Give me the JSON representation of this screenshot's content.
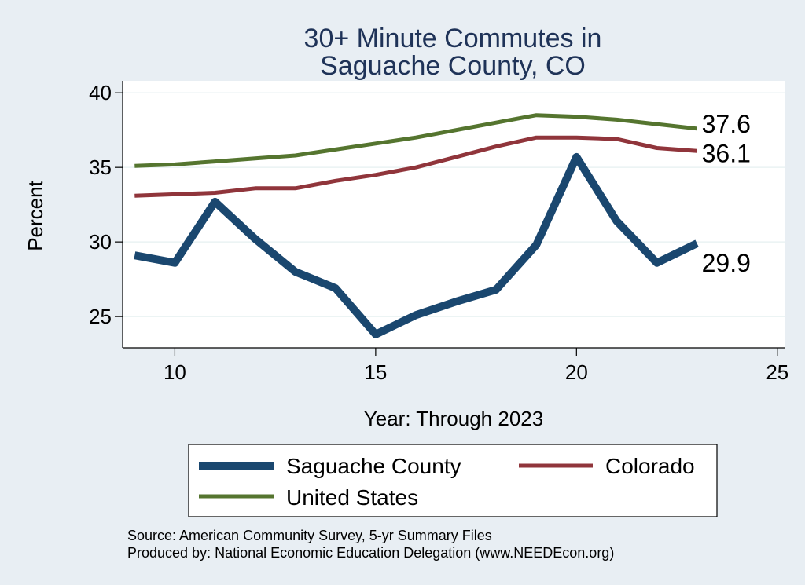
{
  "chart_data": {
    "type": "line",
    "title_lines": [
      "30+ Minute Commutes in",
      "Saguache County, CO"
    ],
    "xlabel": "Year: Through 2023",
    "ylabel": "Percent",
    "xlim": [
      8.7,
      25.2
    ],
    "ylim": [
      22.9,
      40.8
    ],
    "xticks": [
      10,
      15,
      20,
      25
    ],
    "yticks": [
      25,
      30,
      35,
      40
    ],
    "grid": true,
    "legend_position": "bottom",
    "x": [
      9,
      10,
      11,
      12,
      13,
      14,
      15,
      16,
      17,
      18,
      19,
      20,
      21,
      22,
      23
    ],
    "series": [
      {
        "name": "Saguache County",
        "color": "#1a476f",
        "end_label": "29.9",
        "values": [
          29.1,
          28.6,
          32.7,
          30.2,
          28.0,
          26.9,
          23.8,
          25.1,
          26.0,
          26.8,
          29.8,
          35.7,
          31.4,
          28.6,
          29.9
        ]
      },
      {
        "name": "Colorado",
        "color": "#90353b",
        "end_label": "36.1",
        "values": [
          33.1,
          33.2,
          33.3,
          33.6,
          33.6,
          34.1,
          34.5,
          35.0,
          35.7,
          36.4,
          37.0,
          37.0,
          36.9,
          36.3,
          36.1
        ]
      },
      {
        "name": "United States",
        "color": "#55752f",
        "end_label": "37.6",
        "values": [
          35.1,
          35.2,
          35.4,
          35.6,
          35.8,
          36.2,
          36.6,
          37.0,
          37.5,
          38.0,
          38.5,
          38.4,
          38.2,
          37.9,
          37.6
        ]
      }
    ],
    "source_lines": [
      "Source: American Community Survey, 5-yr Summary Files",
      "Produced by: National Economic Education Delegation (www.NEEDEcon.org)"
    ]
  }
}
